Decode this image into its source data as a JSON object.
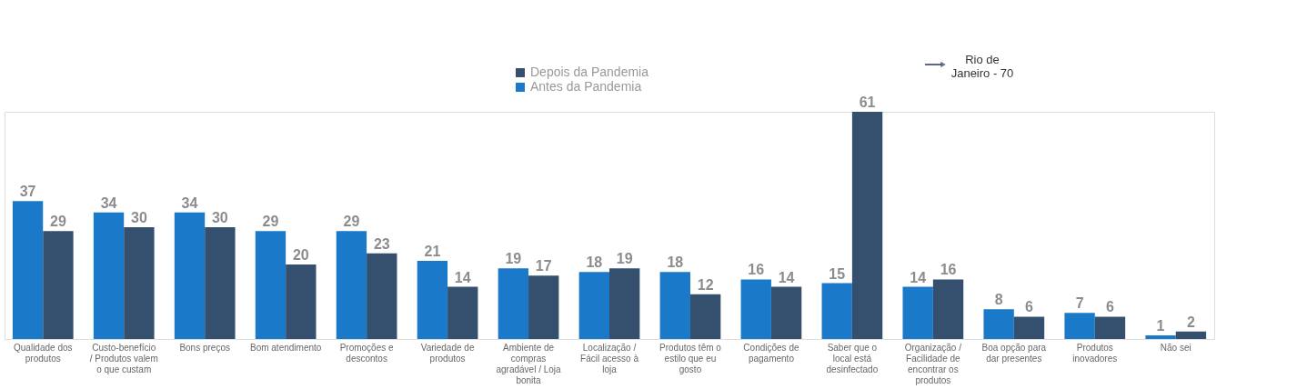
{
  "chart_data": {
    "type": "bar",
    "categories": [
      "Qualidade dos produtos",
      "Custo-benefício / Produtos valem o que custam",
      "Bons preços",
      "Bom atendimento",
      "Promoções e descontos",
      "Variedade de produtos",
      "Ambiente de compras agradável / Loja bonita",
      "Localização / Fácil acesso à loja",
      "Produtos têm o estilo que eu gosto",
      "Condições de pagamento",
      "Saber que o local está desinfectado",
      "Organização / Facilidade de encontrar os produtos",
      "Boa opção para dar presentes",
      "Produtos inovadores",
      "Não sei"
    ],
    "series": [
      {
        "name": "Antes da Pandemia",
        "color": "#1a7ac9",
        "values": [
          37,
          34,
          34,
          29,
          29,
          21,
          19,
          18,
          18,
          16,
          15,
          14,
          8,
          7,
          1
        ]
      },
      {
        "name": "Depois da Pandemia",
        "color": "#34506e",
        "values": [
          29,
          30,
          30,
          20,
          23,
          14,
          17,
          19,
          12,
          14,
          61,
          16,
          6,
          6,
          2
        ]
      }
    ],
    "data_labels": true,
    "legend": "top",
    "annotations": [
      "Rio de Janeiro - 70"
    ]
  }
}
